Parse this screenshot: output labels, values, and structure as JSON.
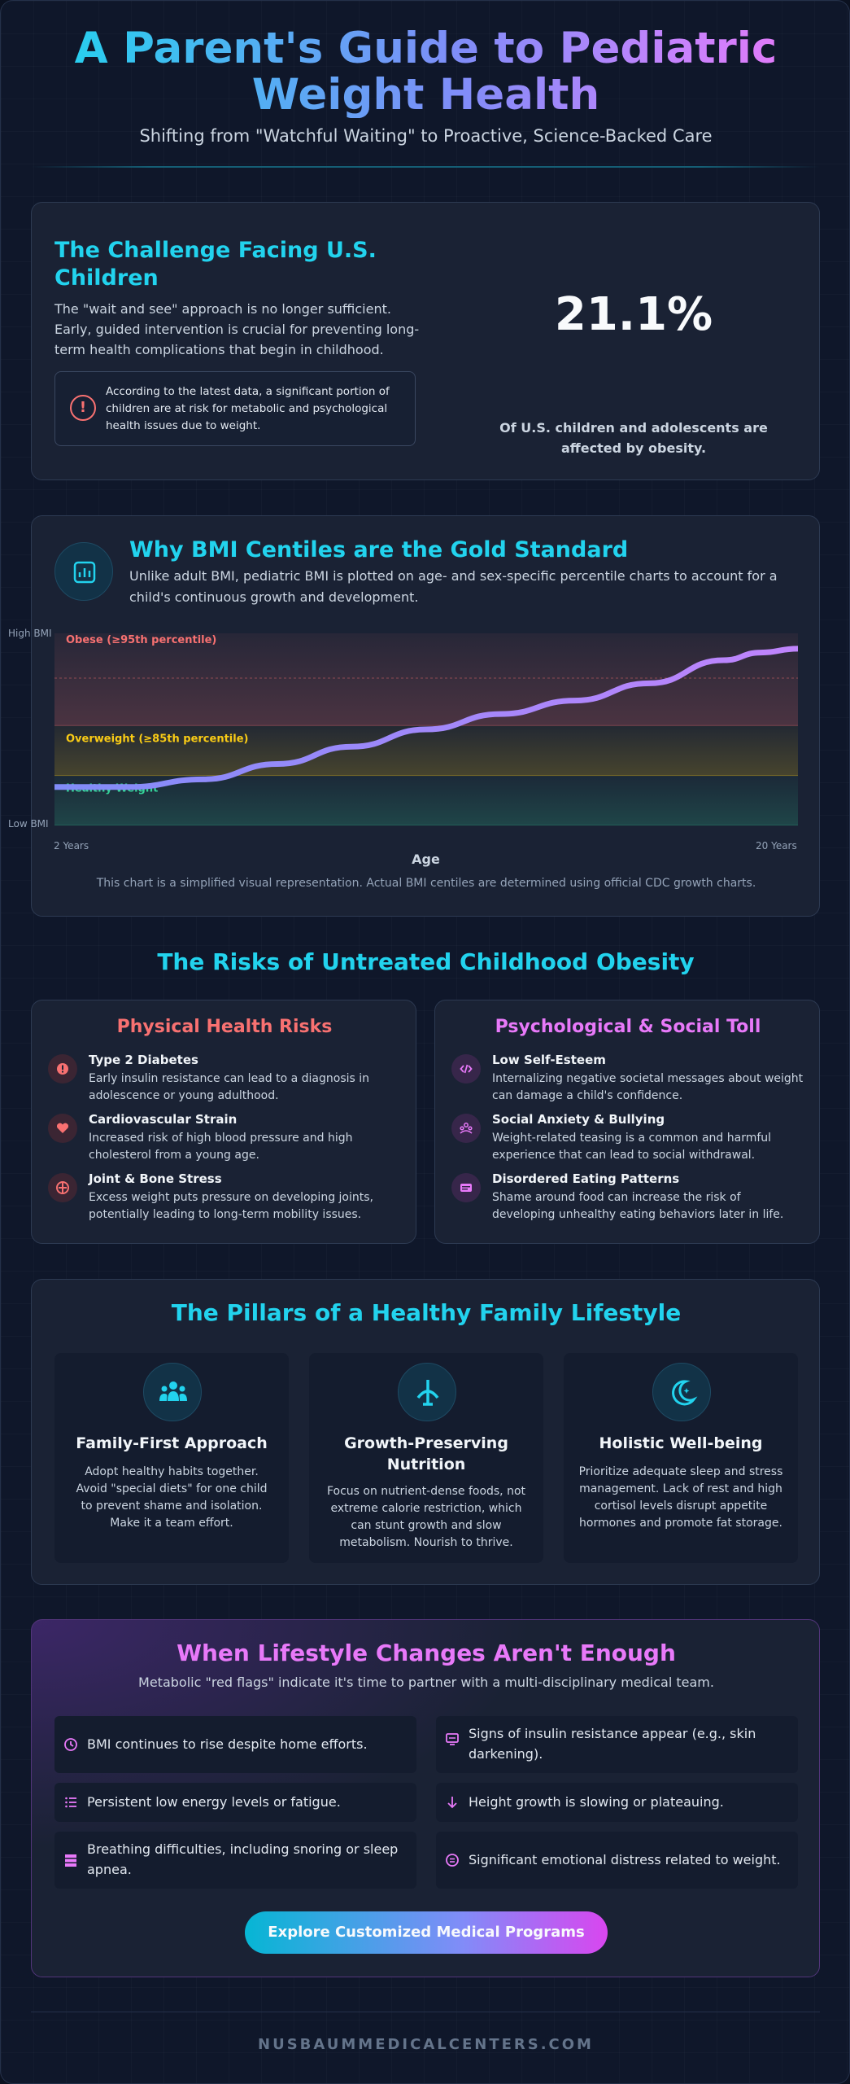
{
  "header": {
    "title": "A Parent's Guide to Pediatric Weight Health",
    "subtitle": "Shifting from \"Watchful Waiting\" to Proactive, Science-Backed Care"
  },
  "challenge": {
    "title": "The Challenge Facing U.S. Children",
    "text": "The \"wait and see\" approach is no longer sufficient. Early, guided intervention is crucial for preventing long-term health complications that begin in childhood.",
    "note": "According to the latest data, a significant portion of children are at risk for metabolic and psychological health issues due to weight.",
    "note_icon": "alert-circle-icon",
    "stat_value": "21.1%",
    "stat_label": "Of U.S. children and adolescents are affected by obesity."
  },
  "bmi": {
    "title": "Why BMI Centiles are the Gold Standard",
    "text": "Unlike adult BMI, pediatric BMI is plotted on age- and sex-specific percentile charts to account for a child's continuous growth and development.",
    "icon": "chart-icon",
    "note": "This chart is a simplified visual representation. Actual BMI centiles are determined using official CDC growth charts."
  },
  "chart_data": {
    "type": "area",
    "title": "",
    "xlabel": "Age",
    "ylabel": "",
    "x_tick_labels": [
      "2 Years",
      "20 Years"
    ],
    "y_tick_labels": [
      "Low BMI",
      "High BMI"
    ],
    "zones": [
      {
        "name": "Healthy Weight",
        "from": 0,
        "to": 0.26,
        "color": "#34d399"
      },
      {
        "name": "Overweight (≥85th percentile)",
        "from": 0.26,
        "to": 0.52,
        "color": "#facc15"
      },
      {
        "name": "Obese (≥95th percentile)",
        "from": 0.52,
        "to": 1.0,
        "color": "#f87171"
      }
    ],
    "series": [
      {
        "name": "",
        "x": [
          0,
          0.1,
          0.2,
          0.3,
          0.4,
          0.5,
          0.6,
          0.7,
          0.8,
          0.9,
          0.95,
          1.0
        ],
        "y": [
          0.2,
          0.2,
          0.24,
          0.32,
          0.41,
          0.5,
          0.58,
          0.65,
          0.74,
          0.86,
          0.9,
          0.92
        ],
        "color_start": "#818cf8",
        "color_end": "#c084fc"
      }
    ],
    "grid": false,
    "legend": "inline-zone-labels"
  },
  "risks": {
    "title": "The Risks of Untreated Childhood Obesity",
    "physical": {
      "title": "Physical Health Risks",
      "color": "#f87171",
      "items": [
        {
          "name": "Type 2 Diabetes",
          "desc": "Early insulin resistance can lead to a diagnosis in adolescence or young adulthood.",
          "icon": "alert-icon"
        },
        {
          "name": "Cardiovascular Strain",
          "desc": "Increased risk of high blood pressure and high cholesterol from a young age.",
          "icon": "heart-icon"
        },
        {
          "name": "Joint & Bone Stress",
          "desc": "Excess weight puts pressure on developing joints, potentially leading to long-term mobility issues.",
          "icon": "joint-icon"
        }
      ]
    },
    "psych": {
      "title": "Psychological & Social Toll",
      "color": "#e879f9",
      "items": [
        {
          "name": "Low Self-Esteem",
          "desc": "Internalizing negative societal messages about weight can damage a child's confidence.",
          "icon": "code-icon"
        },
        {
          "name": "Social Anxiety & Bullying",
          "desc": "Weight-related teasing is a common and harmful experience that can lead to social withdrawal.",
          "icon": "group-icon"
        },
        {
          "name": "Disordered Eating Patterns",
          "desc": "Shame around food can increase the risk of developing unhealthy eating behaviors later in life.",
          "icon": "card-icon"
        }
      ]
    }
  },
  "pillars": {
    "title": "The Pillars of a Healthy Family Lifestyle",
    "items": [
      {
        "title": "Family-First Approach",
        "text": "Adopt healthy habits together. Avoid \"special diets\" for one child to prevent shame and isolation. Make it a team effort.",
        "icon": "family-icon"
      },
      {
        "title": "Growth-Preserving Nutrition",
        "text": "Focus on nutrient-dense foods, not extreme calorie restriction, which can stunt growth and slow metabolism. Nourish to thrive.",
        "icon": "growth-icon"
      },
      {
        "title": "Holistic Well-being",
        "text": "Prioritize adequate sleep and stress management. Lack of rest and high cortisol levels disrupt appetite hormones and promote fat storage.",
        "icon": "moon-icon"
      }
    ]
  },
  "flags": {
    "title": "When Lifestyle Changes Aren't Enough",
    "subtitle": "Metabolic \"red flags\" indicate it's time to partner with a multi-disciplinary medical team.",
    "items": [
      {
        "text": "BMI continues to rise despite home efforts.",
        "icon": "clock-icon"
      },
      {
        "text": "Signs of insulin resistance appear (e.g., skin darkening).",
        "icon": "monitor-icon"
      },
      {
        "text": "Persistent low energy levels or fatigue.",
        "icon": "list-icon"
      },
      {
        "text": "Height growth is slowing or plateauing.",
        "icon": "arrow-down-icon"
      },
      {
        "text": "Breathing difficulties, including snoring or sleep apnea.",
        "icon": "stack-icon"
      },
      {
        "text": "Significant emotional distress related to weight.",
        "icon": "face-icon"
      }
    ],
    "cta": "Explore Customized Medical Programs"
  },
  "footer": {
    "site": "NUSBAUMMEDICALCENTERS.COM"
  },
  "colors": {
    "accent_cyan": "#22d3ee",
    "accent_pink": "#e879f9",
    "accent_red": "#f87171",
    "background": "#0f172a",
    "card": "#1a2234"
  }
}
